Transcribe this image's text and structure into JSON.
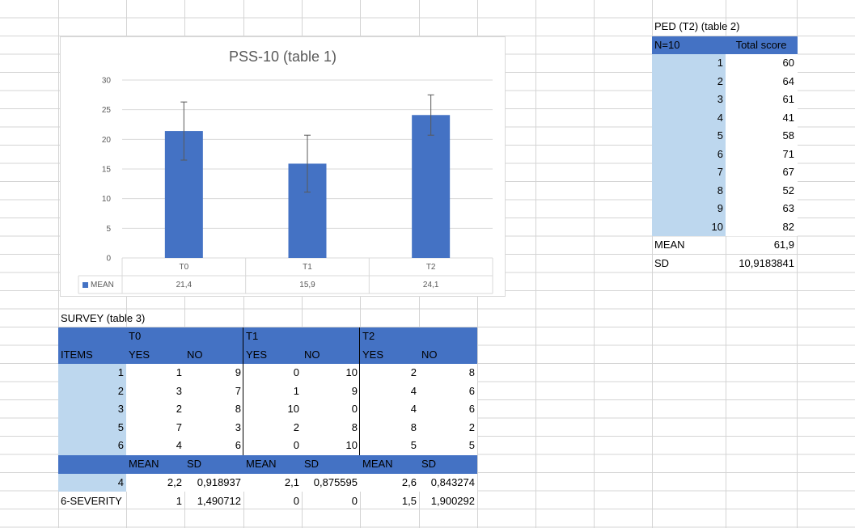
{
  "chart_data": {
    "type": "bar",
    "title": "PSS-10 (table 1)",
    "categories": [
      "T0",
      "T1",
      "T2"
    ],
    "series": [
      {
        "name": "MEAN",
        "values": [
          21.4,
          15.9,
          24.1
        ],
        "error": [
          4.9,
          4.8,
          3.4
        ],
        "labels": [
          "21,4",
          "15,9",
          "24,1"
        ]
      }
    ],
    "ylim": [
      0,
      30
    ],
    "yticks": [
      "0",
      "5",
      "10",
      "15",
      "20",
      "25",
      "30"
    ],
    "grid": true,
    "data_table": true,
    "colors": {
      "bar": "#4472c4",
      "grid": "#d9d9d9",
      "text": "#595959"
    }
  },
  "ped_table": {
    "title": "PED (T2) (table 2)",
    "col1": "N=10",
    "col2": "Total score",
    "rows": [
      {
        "n": "1",
        "score": "60"
      },
      {
        "n": "2",
        "score": "64"
      },
      {
        "n": "3",
        "score": "61"
      },
      {
        "n": "4",
        "score": "41"
      },
      {
        "n": "5",
        "score": "58"
      },
      {
        "n": "6",
        "score": "71"
      },
      {
        "n": "7",
        "score": "67"
      },
      {
        "n": "8",
        "score": "52"
      },
      {
        "n": "9",
        "score": "63"
      },
      {
        "n": "10",
        "score": "82"
      }
    ],
    "mean_label": "MEAN",
    "mean_value": "61,9",
    "sd_label": "SD",
    "sd_value": "10,9183841"
  },
  "survey": {
    "title": "SURVEY (table 3)",
    "groups": [
      "T0",
      "T1",
      "T2"
    ],
    "items_label": "ITEMS",
    "yes": "YES",
    "no": "NO",
    "rows": [
      {
        "item": "1",
        "v": [
          "1",
          "9",
          "0",
          "10",
          "2",
          "8"
        ]
      },
      {
        "item": "2",
        "v": [
          "3",
          "7",
          "1",
          "9",
          "4",
          "6"
        ]
      },
      {
        "item": "3",
        "v": [
          "2",
          "8",
          "10",
          "0",
          "4",
          "6"
        ]
      },
      {
        "item": "5",
        "v": [
          "7",
          "3",
          "2",
          "8",
          "8",
          "2"
        ]
      },
      {
        "item": "6",
        "v": [
          "4",
          "6",
          "0",
          "10",
          "5",
          "5"
        ]
      }
    ],
    "mean": "MEAN",
    "sd": "SD",
    "stat_rows": [
      {
        "item": "4",
        "v": [
          "2,2",
          "0,918937",
          "2,1",
          "0,875595",
          "2,6",
          "0,843274"
        ]
      },
      {
        "item": "6-SEVERITY",
        "v": [
          "1",
          "1,490712",
          "0",
          "0",
          "1,5",
          "1,900292"
        ]
      }
    ]
  }
}
